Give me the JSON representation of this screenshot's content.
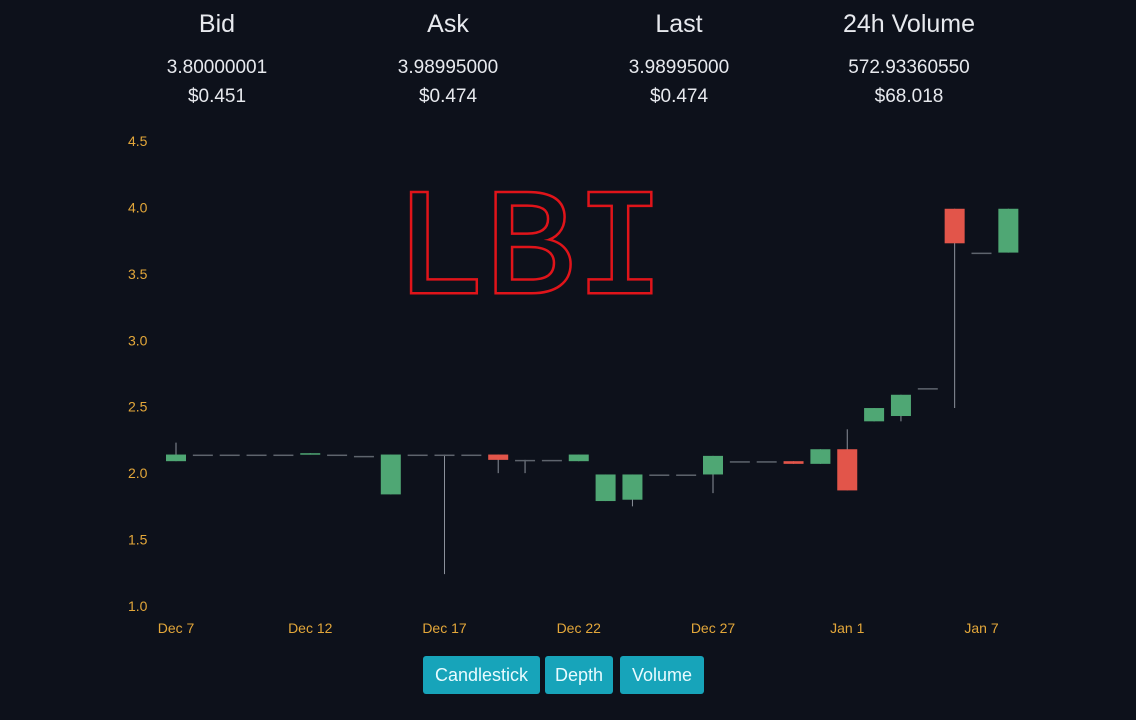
{
  "stats": [
    {
      "label": "Bid",
      "value": "3.80000001",
      "usd": "$0.451"
    },
    {
      "label": "Ask",
      "value": "3.98995000",
      "usd": "$0.474"
    },
    {
      "label": "Last",
      "value": "3.98995000",
      "usd": "$0.474"
    },
    {
      "label": "24h Volume",
      "value": "572.93360550",
      "usd": "$68.018"
    }
  ],
  "watermark": "LBI",
  "colors": {
    "up": "#4fa774",
    "down": "#e2554a",
    "axis_text": "#e3a73a",
    "background": "#0d111b",
    "button": "#17a4ba",
    "watermark": "#e0141a"
  },
  "buttons": {
    "candlestick": "Candlestick",
    "depth": "Depth",
    "volume": "Volume"
  },
  "chart_data": {
    "type": "candlestick",
    "y_ticks": [
      "4.5",
      "4.0",
      "3.5",
      "3.0",
      "2.5",
      "2.0",
      "1.5",
      "1.0"
    ],
    "x_ticks": [
      "Dec 7",
      "Dec 12",
      "Dec 17",
      "Dec 22",
      "Dec 27",
      "Jan 1",
      "Jan 7"
    ],
    "ylim": [
      1.0,
      4.5
    ],
    "candles": [
      {
        "date": "Dec 7",
        "open": 2.09,
        "high": 2.23,
        "low": 2.09,
        "close": 2.14
      },
      {
        "date": "Dec 8",
        "open": 2.14,
        "high": 2.14,
        "low": 2.14,
        "close": 2.14
      },
      {
        "date": "Dec 9",
        "open": 2.14,
        "high": 2.14,
        "low": 2.14,
        "close": 2.14
      },
      {
        "date": "Dec 10",
        "open": 2.14,
        "high": 2.14,
        "low": 2.14,
        "close": 2.14
      },
      {
        "date": "Dec 11",
        "open": 2.14,
        "high": 2.14,
        "low": 2.14,
        "close": 2.14
      },
      {
        "date": "Dec 12",
        "open": 2.14,
        "high": 2.15,
        "low": 2.14,
        "close": 2.15
      },
      {
        "date": "Dec 13",
        "open": 2.14,
        "high": 2.14,
        "low": 2.14,
        "close": 2.14
      },
      {
        "date": "Dec 14",
        "open": 2.13,
        "high": 2.13,
        "low": 2.13,
        "close": 2.13
      },
      {
        "date": "Dec 15",
        "open": 1.84,
        "high": 2.14,
        "low": 1.84,
        "close": 2.14
      },
      {
        "date": "Dec 16",
        "open": 2.14,
        "high": 2.14,
        "low": 2.14,
        "close": 2.14
      },
      {
        "date": "Dec 17",
        "open": 2.14,
        "high": 2.14,
        "low": 1.24,
        "close": 2.14
      },
      {
        "date": "Dec 18",
        "open": 2.14,
        "high": 2.14,
        "low": 2.14,
        "close": 2.14
      },
      {
        "date": "Dec 19",
        "open": 2.14,
        "high": 2.14,
        "low": 2.0,
        "close": 2.1
      },
      {
        "date": "Dec 20",
        "open": 2.1,
        "high": 2.1,
        "low": 2.0,
        "close": 2.1
      },
      {
        "date": "Dec 21",
        "open": 2.1,
        "high": 2.1,
        "low": 2.1,
        "close": 2.1
      },
      {
        "date": "Dec 22",
        "open": 2.09,
        "high": 2.14,
        "low": 2.09,
        "close": 2.14
      },
      {
        "date": "Dec 23",
        "open": 1.79,
        "high": 1.99,
        "low": 1.79,
        "close": 1.99
      },
      {
        "date": "Dec 24",
        "open": 1.8,
        "high": 1.99,
        "low": 1.75,
        "close": 1.99
      },
      {
        "date": "Dec 25",
        "open": 1.99,
        "high": 1.99,
        "low": 1.99,
        "close": 1.99
      },
      {
        "date": "Dec 26",
        "open": 1.99,
        "high": 1.99,
        "low": 1.99,
        "close": 1.99
      },
      {
        "date": "Dec 27",
        "open": 1.99,
        "high": 2.13,
        "low": 1.85,
        "close": 2.13
      },
      {
        "date": "Dec 28",
        "open": 2.09,
        "high": 2.09,
        "low": 2.09,
        "close": 2.09
      },
      {
        "date": "Dec 29",
        "open": 2.09,
        "high": 2.09,
        "low": 2.09,
        "close": 2.09
      },
      {
        "date": "Dec 30",
        "open": 2.09,
        "high": 2.09,
        "low": 2.07,
        "close": 2.07
      },
      {
        "date": "Dec 31",
        "open": 2.07,
        "high": 2.18,
        "low": 2.07,
        "close": 2.18
      },
      {
        "date": "Jan 1",
        "open": 2.18,
        "high": 2.33,
        "low": 1.87,
        "close": 1.87
      },
      {
        "date": "Jan 2",
        "open": 2.39,
        "high": 2.49,
        "low": 2.39,
        "close": 2.49
      },
      {
        "date": "Jan 3",
        "open": 2.43,
        "high": 2.59,
        "low": 2.39,
        "close": 2.59
      },
      {
        "date": "Jan 4",
        "open": 2.64,
        "high": 2.64,
        "low": 2.64,
        "close": 2.64
      },
      {
        "date": "Jan 5",
        "open": 3.99,
        "high": 3.99,
        "low": 2.49,
        "close": 3.73
      },
      {
        "date": "Jan 6",
        "open": 3.66,
        "high": 3.66,
        "low": 3.66,
        "close": 3.66
      },
      {
        "date": "Jan 7",
        "open": 3.66,
        "high": 3.99,
        "low": 3.66,
        "close": 3.99
      }
    ]
  }
}
